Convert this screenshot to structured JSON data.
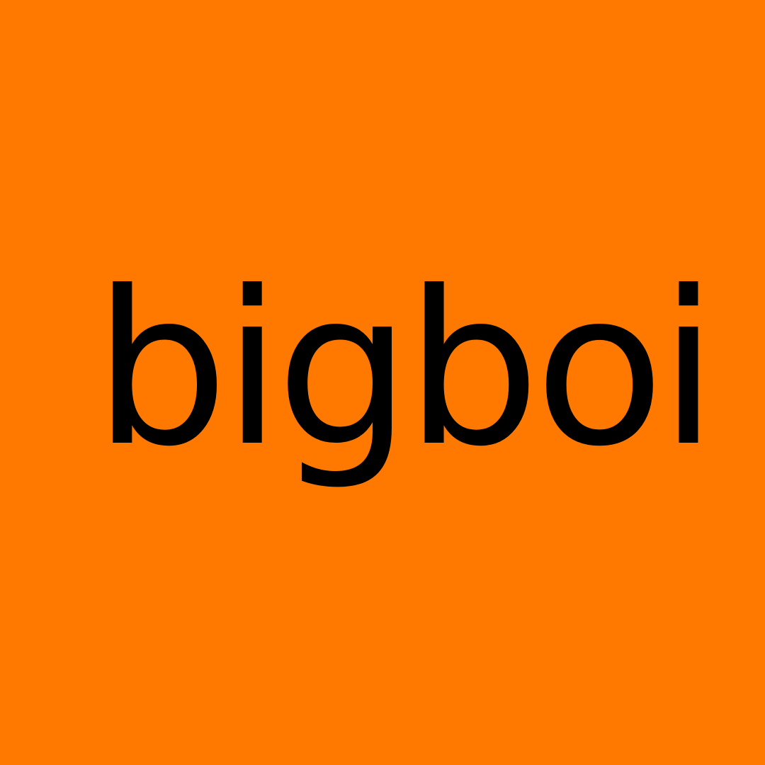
{
  "brand": {
    "wordmark": "bigboi",
    "background_color": "#ff7900",
    "text_color": "#000000"
  }
}
